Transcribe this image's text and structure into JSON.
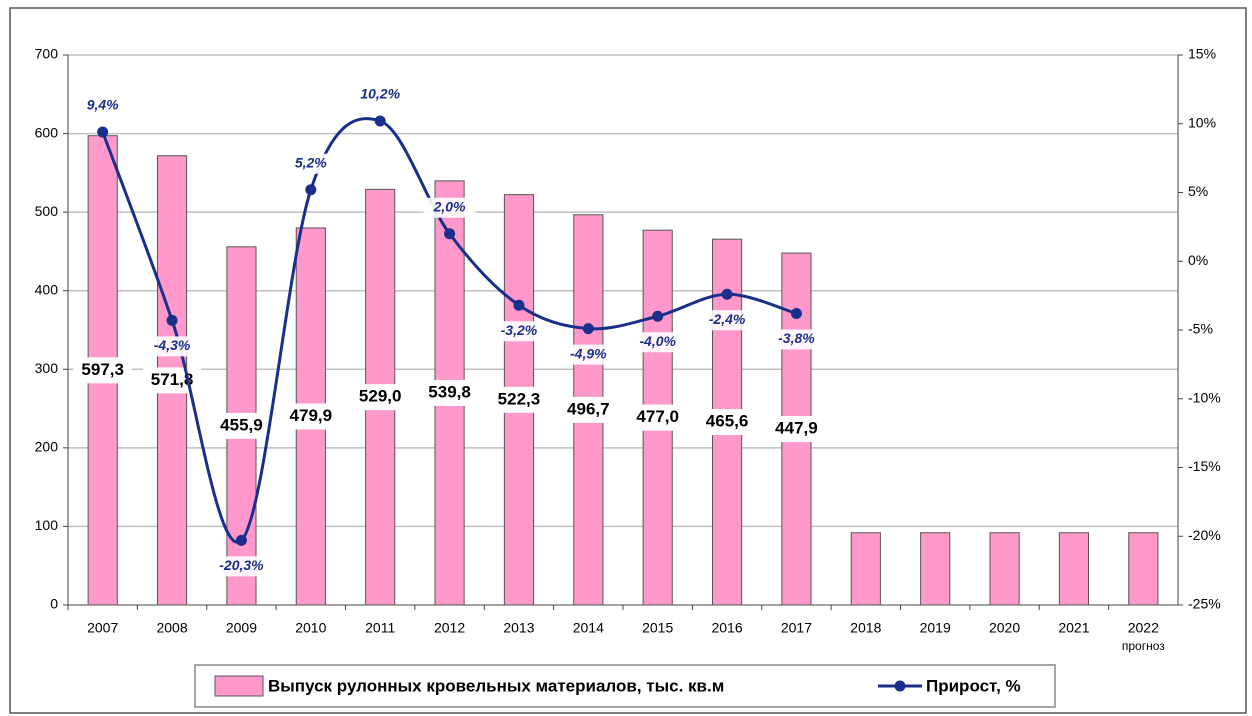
{
  "chart_data": {
    "type": "bar",
    "categories": [
      "2007",
      "2008",
      "2009",
      "2010",
      "2011",
      "2012",
      "2013",
      "2014",
      "2015",
      "2016",
      "2017",
      "2018",
      "2019",
      "2020",
      "2021",
      "2022"
    ],
    "category_note": "прогноз",
    "series": [
      {
        "name": "Выпуск рулонных кровельных материалов, тыс. кв.м",
        "type": "bar",
        "color": "#ff99cc",
        "values": [
          597.3,
          571.8,
          455.9,
          479.9,
          529.0,
          539.8,
          522.3,
          496.7,
          477.0,
          465.6,
          447.9,
          92,
          92,
          92,
          92,
          92
        ],
        "value_labels": [
          "597,3",
          "571,8",
          "455,9",
          "479,9",
          "529,0",
          "539,8",
          "522,3",
          "496,7",
          "477,0",
          "465,6",
          "447,9",
          null,
          null,
          null,
          null,
          null
        ]
      },
      {
        "name": "Прирост, %",
        "type": "line",
        "axis": "y2",
        "color": "#1a2f8a",
        "values": [
          9.4,
          -4.3,
          -20.3,
          5.2,
          10.2,
          2.0,
          -3.2,
          -4.9,
          -4.0,
          -2.4,
          -3.8,
          null,
          null,
          null,
          null,
          null
        ],
        "value_labels": [
          "9,4%",
          "-4,3%",
          "-20,3%",
          "5,2%",
          "10,2%",
          "2,0%",
          "-3,2%",
          "-4,9%",
          "-4,0%",
          "-2,4%",
          "-3,8%",
          null,
          null,
          null,
          null,
          null
        ]
      }
    ],
    "ylim": [
      0,
      700
    ],
    "yticks": [
      0,
      100,
      200,
      300,
      400,
      500,
      600,
      700
    ],
    "y2lim": [
      -25,
      15
    ],
    "y2ticks": [
      {
        "value": -25,
        "label": "-25%"
      },
      {
        "value": -20,
        "label": "-20%"
      },
      {
        "value": -15,
        "label": "-15%"
      },
      {
        "value": -10,
        "label": "-10%"
      },
      {
        "value": -5,
        "label": "-5%"
      },
      {
        "value": 0,
        "label": "0%"
      },
      {
        "value": 5,
        "label": "5%"
      },
      {
        "value": 10,
        "label": "10%"
      },
      {
        "value": 15,
        "label": "15%"
      }
    ],
    "grid": true,
    "legend": "bottom"
  }
}
